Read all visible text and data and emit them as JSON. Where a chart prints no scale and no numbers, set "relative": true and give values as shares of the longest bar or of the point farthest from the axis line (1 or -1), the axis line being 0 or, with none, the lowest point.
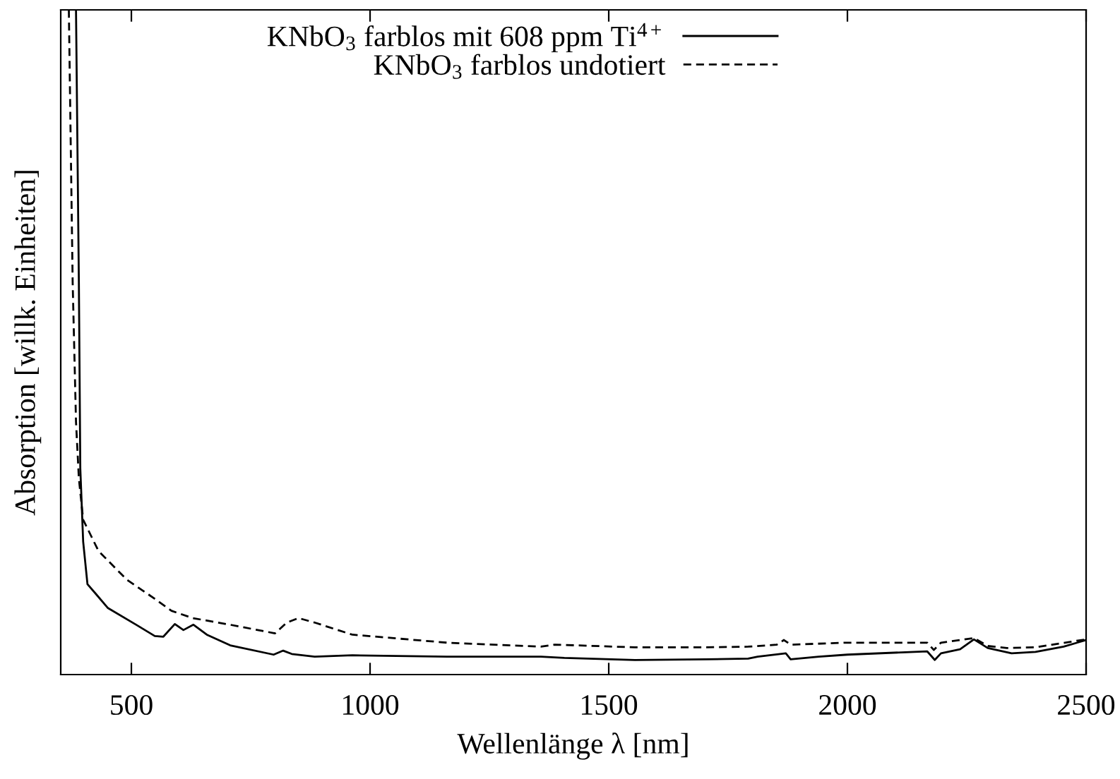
{
  "chart_data": {
    "type": "line",
    "relative": true,
    "xlabel": "Wellenlänge λ [nm]",
    "ylabel": "Absorption [willk. Einheiten]",
    "xlim": [
      352,
      2500
    ],
    "xticks": [
      500,
      1000,
      1500,
      2000,
      2500
    ],
    "grid": false,
    "legend": "top",
    "marker": "none",
    "series": [
      {
        "name": "KNbO$_{3}$ farblos mit 608 ppm Ti$^{4+}$",
        "color": "#000000",
        "line_style": "solid",
        "x": [
          384,
          390,
          393,
          399,
          408,
          426,
          451,
          510,
          549,
          567,
          591,
          609,
          630,
          658,
          707,
          798,
          818,
          836,
          884,
          963,
          1161,
          1358,
          1407,
          1555,
          1703,
          1792,
          1812,
          1871,
          1881,
          1940,
          2000,
          2167,
          2183,
          2196,
          2236,
          2265,
          2294,
          2344,
          2394,
          2453,
          2500
        ],
        "values": [
          1,
          0.59,
          0.31,
          0.2,
          0.136,
          0.121,
          0.1,
          0.075,
          0.058,
          0.057,
          0.076,
          0.067,
          0.075,
          0.06,
          0.044,
          0.03,
          0.036,
          0.031,
          0.027,
          0.029,
          0.027,
          0.027,
          0.025,
          0.022,
          0.023,
          0.024,
          0.027,
          0.032,
          0.023,
          0.027,
          0.03,
          0.035,
          0.022,
          0.032,
          0.038,
          0.053,
          0.04,
          0.032,
          0.034,
          0.042,
          0.052
        ]
      },
      {
        "name": "KNbO$_{3}$ farblos undotiert",
        "color": "#000000",
        "line_style": "dashed",
        "x": [
          369,
          377,
          384,
          390,
          399,
          431,
          490,
          549,
          584,
          628,
          707,
          801,
          825,
          850,
          885,
          963,
          1161,
          1358,
          1387,
          1555,
          1703,
          1792,
          1852,
          1867,
          1881,
          2000,
          2167,
          2181,
          2196,
          2265,
          2294,
          2334,
          2394,
          2500
        ],
        "values": [
          1,
          0.59,
          0.38,
          0.295,
          0.233,
          0.186,
          0.143,
          0.114,
          0.096,
          0.085,
          0.075,
          0.062,
          0.078,
          0.085,
          0.078,
          0.06,
          0.048,
          0.042,
          0.045,
          0.041,
          0.041,
          0.042,
          0.045,
          0.052,
          0.045,
          0.048,
          0.048,
          0.037,
          0.048,
          0.055,
          0.043,
          0.04,
          0.041,
          0.053
        ]
      }
    ]
  }
}
